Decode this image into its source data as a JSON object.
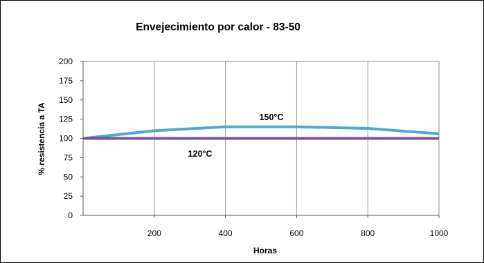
{
  "chart_data": {
    "type": "line",
    "title": "Envejecimiento por calor -  83-50",
    "xlabel": "Horas",
    "ylabel": "% resistencia a TA",
    "xlim": [
      0,
      1000
    ],
    "ylim": [
      0,
      200
    ],
    "x_ticks": [
      "200",
      "400",
      "600",
      "800",
      "1000"
    ],
    "y_ticks": [
      "0",
      "25",
      "50",
      "75",
      "100",
      "125",
      "150",
      "175",
      "200"
    ],
    "grid": "vertical",
    "legend": "none",
    "series": [
      {
        "name": "150°C",
        "color": "#4BACC6",
        "x": [
          0,
          200,
          400,
          600,
          800,
          1000
        ],
        "y": [
          100,
          110,
          115,
          115,
          113,
          106
        ]
      },
      {
        "name": "120°C",
        "color": "#7F4F9F",
        "x": [
          0,
          200,
          400,
          600,
          800,
          1000
        ],
        "y": [
          100,
          100,
          100,
          100,
          100,
          100
        ]
      }
    ]
  }
}
